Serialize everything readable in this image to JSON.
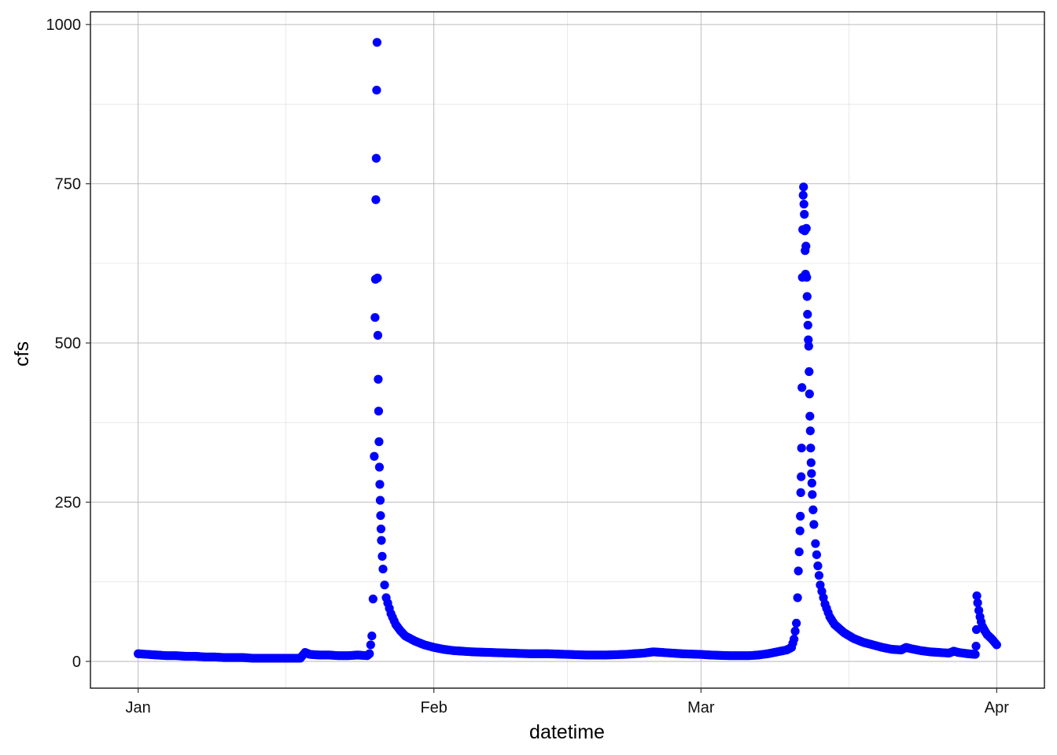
{
  "chart_data": {
    "type": "scatter",
    "title": "",
    "xlabel": "datetime",
    "ylabel": "cfs",
    "x_ticks": [
      {
        "label": "Jan",
        "value": "2023-01-01"
      },
      {
        "label": "Feb",
        "value": "2023-02-01"
      },
      {
        "label": "Mar",
        "value": "2023-03-01"
      },
      {
        "label": "Apr",
        "value": "2023-04-01"
      }
    ],
    "y_ticks": [
      0,
      250,
      500,
      750,
      1000
    ],
    "xlim": [
      "2022-12-27",
      "2023-04-06"
    ],
    "ylim": [
      -42,
      1020
    ],
    "grid": true,
    "marker_color": "#0000ff",
    "points": [
      [
        "2023-01-01",
        12
      ],
      [
        "2023-01-02",
        11
      ],
      [
        "2023-01-03",
        10
      ],
      [
        "2023-01-04",
        9
      ],
      [
        "2023-01-05",
        9
      ],
      [
        "2023-01-06",
        8
      ],
      [
        "2023-01-07",
        8
      ],
      [
        "2023-01-08",
        7
      ],
      [
        "2023-01-09",
        7
      ],
      [
        "2023-01-10",
        6
      ],
      [
        "2023-01-11",
        6
      ],
      [
        "2023-01-12",
        6
      ],
      [
        "2023-01-13",
        5
      ],
      [
        "2023-01-14",
        5
      ],
      [
        "2023-01-15",
        5
      ],
      [
        "2023-01-16",
        5
      ],
      [
        "2023-01-17",
        5
      ],
      [
        "2023-01-18",
        5
      ],
      [
        "2023-01-18T12:00",
        14
      ],
      [
        "2023-01-19",
        11
      ],
      [
        "2023-01-20",
        10
      ],
      [
        "2023-01-21",
        10
      ],
      [
        "2023-01-22",
        9
      ],
      [
        "2023-01-23",
        9
      ],
      [
        "2023-01-24",
        10
      ],
      [
        "2023-01-25",
        9
      ],
      [
        "2023-01-25T06:00",
        12
      ],
      [
        "2023-01-25T12:00",
        40
      ],
      [
        "2023-01-25T15:00",
        98
      ],
      [
        "2023-01-25T18:00",
        322
      ],
      [
        "2023-01-25T20:00",
        540
      ],
      [
        "2023-01-25T21:00",
        600
      ],
      [
        "2023-01-25T22:00",
        725
      ],
      [
        "2023-01-25T23:00",
        790
      ],
      [
        "2023-01-26T00:00",
        897
      ],
      [
        "2023-01-26T01:00",
        972
      ],
      [
        "2023-01-26T02:00",
        602
      ],
      [
        "2023-01-26T03:00",
        512
      ],
      [
        "2023-01-26T04:00",
        443
      ],
      [
        "2023-01-26T05:00",
        393
      ],
      [
        "2023-01-26T06:00",
        345
      ],
      [
        "2023-01-26T07:00",
        305
      ],
      [
        "2023-01-26T08:00",
        278
      ],
      [
        "2023-01-26T09:00",
        253
      ],
      [
        "2023-01-26T10:00",
        229
      ],
      [
        "2023-01-26T11:00",
        208
      ],
      [
        "2023-01-26T12:00",
        190
      ],
      [
        "2023-01-26T14:00",
        165
      ],
      [
        "2023-01-26T16:00",
        145
      ],
      [
        "2023-01-26T20:00",
        120
      ],
      [
        "2023-01-27",
        100
      ],
      [
        "2023-01-27T12:00",
        75
      ],
      [
        "2023-01-28",
        58
      ],
      [
        "2023-01-28T12:00",
        48
      ],
      [
        "2023-01-29",
        40
      ],
      [
        "2023-01-30",
        32
      ],
      [
        "2023-01-31",
        26
      ],
      [
        "2023-02-01",
        22
      ],
      [
        "2023-02-02",
        19
      ],
      [
        "2023-02-03",
        17
      ],
      [
        "2023-02-05",
        15
      ],
      [
        "2023-02-07",
        14
      ],
      [
        "2023-02-09",
        13
      ],
      [
        "2023-02-11",
        12
      ],
      [
        "2023-02-13",
        12
      ],
      [
        "2023-02-15",
        11
      ],
      [
        "2023-02-17",
        10
      ],
      [
        "2023-02-19",
        10
      ],
      [
        "2023-02-21",
        11
      ],
      [
        "2023-02-23",
        13
      ],
      [
        "2023-02-24",
        15
      ],
      [
        "2023-02-25",
        14
      ],
      [
        "2023-02-27",
        12
      ],
      [
        "2023-03-01",
        11
      ],
      [
        "2023-03-02",
        10
      ],
      [
        "2023-03-04",
        9
      ],
      [
        "2023-03-06",
        9
      ],
      [
        "2023-03-07",
        10
      ],
      [
        "2023-03-08",
        12
      ],
      [
        "2023-03-09",
        15
      ],
      [
        "2023-03-10",
        18
      ],
      [
        "2023-03-10T12:00",
        22
      ],
      [
        "2023-03-10T18:00",
        35
      ],
      [
        "2023-03-11T00:00",
        60
      ],
      [
        "2023-03-11T03:00",
        100
      ],
      [
        "2023-03-11T05:00",
        142
      ],
      [
        "2023-03-11T07:00",
        172
      ],
      [
        "2023-03-11T09:00",
        205
      ],
      [
        "2023-03-11T10:00",
        228
      ],
      [
        "2023-03-11T11:00",
        265
      ],
      [
        "2023-03-11T12:00",
        290
      ],
      [
        "2023-03-11T13:00",
        335
      ],
      [
        "2023-03-11T14:00",
        430
      ],
      [
        "2023-03-11T15:00",
        603
      ],
      [
        "2023-03-11T16:00",
        678
      ],
      [
        "2023-03-11T17:00",
        732
      ],
      [
        "2023-03-11T18:00",
        745
      ],
      [
        "2023-03-11T19:00",
        718
      ],
      [
        "2023-03-11T20:00",
        702
      ],
      [
        "2023-03-11T21:00",
        676
      ],
      [
        "2023-03-11T22:00",
        645
      ],
      [
        "2023-03-11T23:00",
        608
      ],
      [
        "2023-03-12T00:00",
        652
      ],
      [
        "2023-03-12T01:00",
        680
      ],
      [
        "2023-03-12T02:00",
        603
      ],
      [
        "2023-03-12T03:00",
        573
      ],
      [
        "2023-03-12T04:00",
        545
      ],
      [
        "2023-03-12T05:00",
        528
      ],
      [
        "2023-03-12T06:00",
        505
      ],
      [
        "2023-03-12T07:00",
        495
      ],
      [
        "2023-03-12T08:00",
        455
      ],
      [
        "2023-03-12T09:00",
        420
      ],
      [
        "2023-03-12T10:00",
        385
      ],
      [
        "2023-03-12T11:00",
        362
      ],
      [
        "2023-03-12T12:00",
        335
      ],
      [
        "2023-03-12T13:00",
        312
      ],
      [
        "2023-03-12T14:00",
        295
      ],
      [
        "2023-03-12T15:00",
        280
      ],
      [
        "2023-03-12T16:00",
        262
      ],
      [
        "2023-03-12T18:00",
        238
      ],
      [
        "2023-03-12T20:00",
        215
      ],
      [
        "2023-03-13T00:00",
        185
      ],
      [
        "2023-03-13T06:00",
        150
      ],
      [
        "2023-03-13T12:00",
        120
      ],
      [
        "2023-03-14",
        90
      ],
      [
        "2023-03-14T12:00",
        70
      ],
      [
        "2023-03-15",
        58
      ],
      [
        "2023-03-16",
        45
      ],
      [
        "2023-03-17",
        36
      ],
      [
        "2023-03-18",
        30
      ],
      [
        "2023-03-19",
        26
      ],
      [
        "2023-03-20",
        22
      ],
      [
        "2023-03-21",
        19
      ],
      [
        "2023-03-22",
        18
      ],
      [
        "2023-03-22T12:00",
        22
      ],
      [
        "2023-03-23",
        20
      ],
      [
        "2023-03-24",
        17
      ],
      [
        "2023-03-25",
        15
      ],
      [
        "2023-03-26",
        14
      ],
      [
        "2023-03-27",
        13
      ],
      [
        "2023-03-27T12:00",
        16
      ],
      [
        "2023-03-28",
        14
      ],
      [
        "2023-03-29",
        12
      ],
      [
        "2023-03-29T18:00",
        11
      ],
      [
        "2023-03-29T20:00",
        24
      ],
      [
        "2023-03-29T21:00",
        50
      ],
      [
        "2023-03-29T22:00",
        103
      ],
      [
        "2023-03-30T00:00",
        92
      ],
      [
        "2023-03-30T03:00",
        80
      ],
      [
        "2023-03-30T06:00",
        70
      ],
      [
        "2023-03-30T09:00",
        62
      ],
      [
        "2023-03-30T12:00",
        55
      ],
      [
        "2023-03-30T18:00",
        48
      ],
      [
        "2023-03-31",
        42
      ],
      [
        "2023-03-31T12:00",
        35
      ],
      [
        "2023-04-01",
        26
      ]
    ]
  }
}
